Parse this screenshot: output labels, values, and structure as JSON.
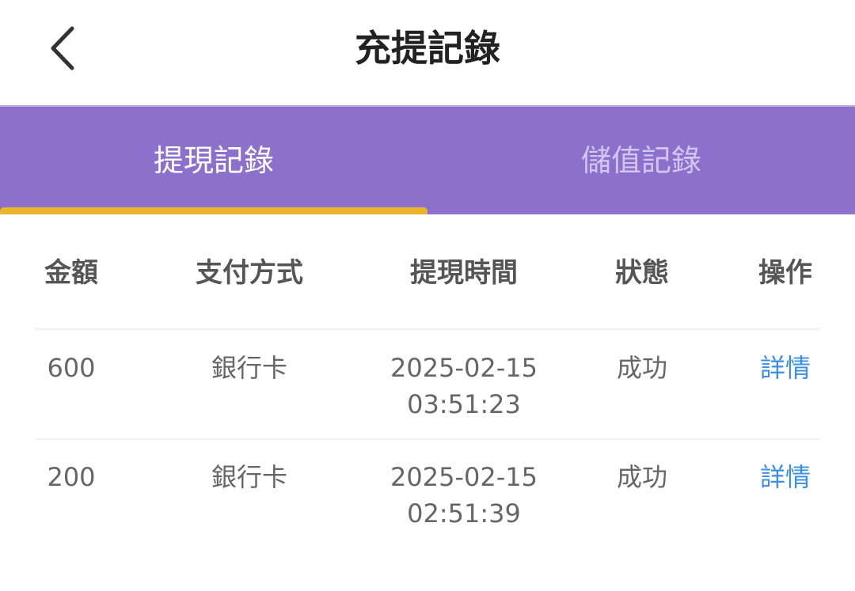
{
  "header": {
    "title": "充提記錄",
    "back_icon": "chevron-left-icon"
  },
  "tabs": [
    {
      "label": "提現記錄",
      "active": true
    },
    {
      "label": "儲值記錄",
      "active": false
    }
  ],
  "colors": {
    "tab_bar": "#8d70cc",
    "indicator": "#e9b52a",
    "link": "#3a8ee6"
  },
  "table": {
    "columns": [
      "金額",
      "支付方式",
      "提現時間",
      "狀態",
      "操作"
    ],
    "rows": [
      {
        "amount": "600",
        "method": "銀行卡",
        "date": "2025-02-15",
        "time": "03:51:23",
        "status": "成功",
        "action": "詳情"
      },
      {
        "amount": "200",
        "method": "銀行卡",
        "date": "2025-02-15",
        "time": "02:51:39",
        "status": "成功",
        "action": "詳情"
      }
    ]
  }
}
